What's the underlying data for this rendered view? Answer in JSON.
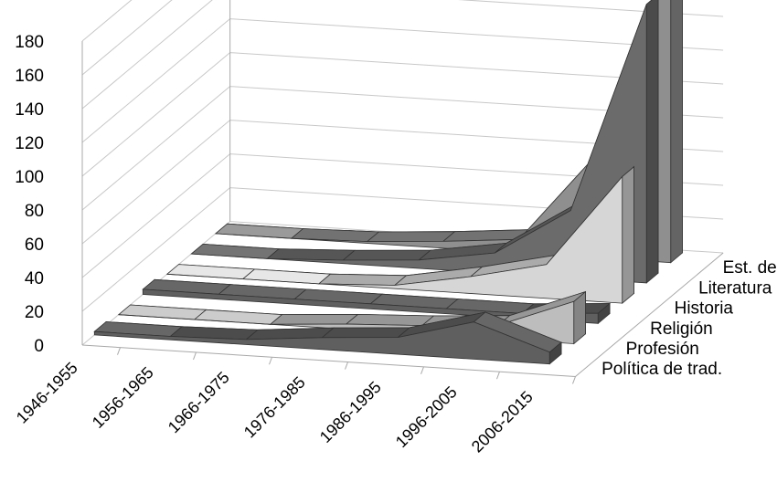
{
  "chart_data": {
    "type": "area",
    "variant": "3d-ribbon",
    "title": "",
    "xlabel": "",
    "ylabel": "",
    "ylim": [
      0,
      180
    ],
    "y_ticks": [
      0,
      20,
      40,
      60,
      80,
      100,
      120,
      140,
      160,
      180
    ],
    "grid": true,
    "categories": [
      "1946-1955",
      "1956-1965",
      "1966-1975",
      "1976-1985",
      "1986-1995",
      "1996-2005",
      "2006-2015"
    ],
    "series": [
      {
        "name": "Política de trad.",
        "values": [
          2,
          2,
          3,
          7,
          10,
          22,
          7
        ],
        "color": "#5f5f5f"
      },
      {
        "name": "Profesión",
        "values": [
          0,
          0,
          0,
          3,
          5,
          8,
          25
        ],
        "color": "#bdbdbd"
      },
      {
        "name": "Religión",
        "values": [
          3,
          3,
          3,
          3,
          3,
          3,
          6
        ],
        "color": "#5f5f5f"
      },
      {
        "name": "Historia",
        "values": [
          0,
          0,
          0,
          2,
          10,
          20,
          75
        ],
        "color": "#d6d6d6"
      },
      {
        "name": "Literatura",
        "values": [
          0,
          0,
          2,
          5,
          12,
          40,
          165
        ],
        "color": "#6b6b6b"
      },
      {
        "name": "Est. de caso",
        "values": [
          0,
          0,
          1,
          4,
          8,
          60,
          180
        ],
        "color": "#8f8f8f"
      }
    ]
  }
}
